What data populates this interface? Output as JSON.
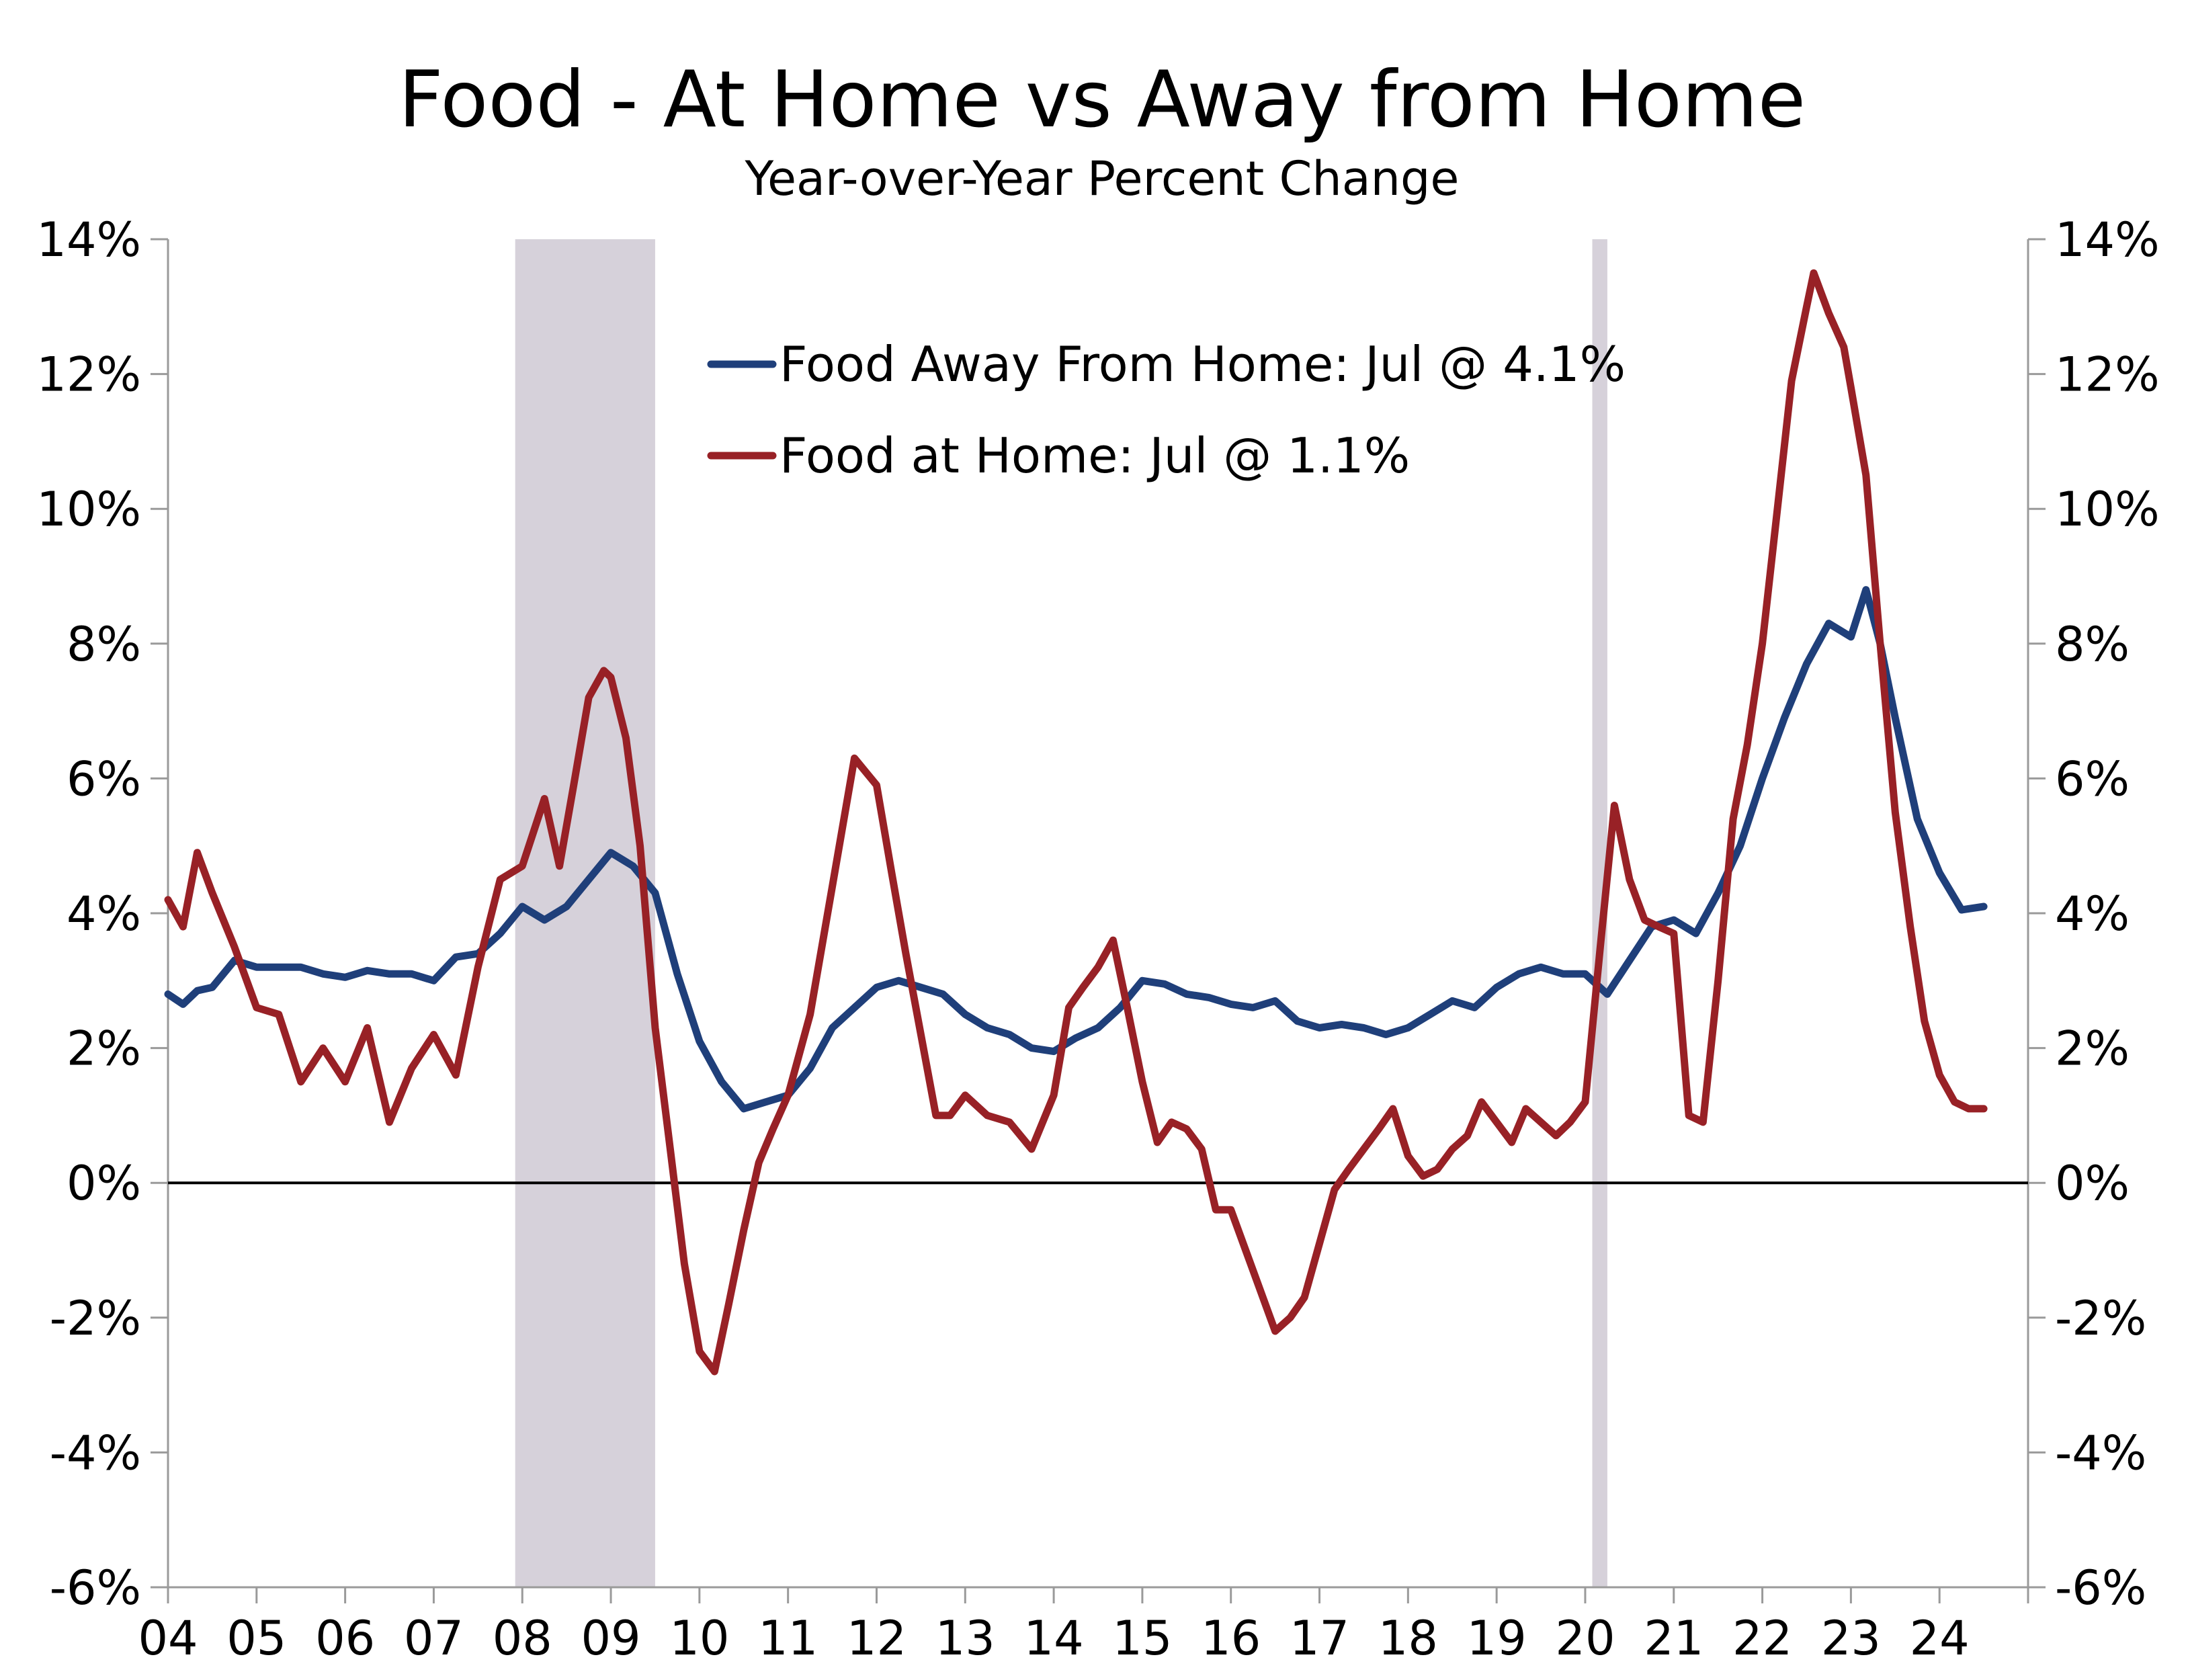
{
  "chart_data": {
    "type": "line",
    "title": "Food - At Home vs Away from Home",
    "subtitle": "Year-over-Year Percent Change",
    "xlabel": "",
    "ylabel": "",
    "x_range": [
      2004.0,
      2025.0
    ],
    "ylim": [
      -6,
      14
    ],
    "y_ticks": [
      -6,
      -4,
      -2,
      0,
      2,
      4,
      6,
      8,
      10,
      12,
      14
    ],
    "y_tick_labels": [
      "-6%",
      "-4%",
      "-2%",
      "0%",
      "2%",
      "4%",
      "6%",
      "8%",
      "10%",
      "12%",
      "14%"
    ],
    "x_tick_labels": [
      "04",
      "05",
      "06",
      "07",
      "08",
      "09",
      "10",
      "11",
      "12",
      "13",
      "14",
      "15",
      "16",
      "17",
      "18",
      "19",
      "20",
      "21",
      "22",
      "23",
      "24"
    ],
    "grid": false,
    "zero_line": true,
    "dual_axis": true,
    "legend_position": "top-center",
    "recession_bands": [
      {
        "start": 2007.92,
        "end": 2009.5
      },
      {
        "start": 2020.08,
        "end": 2020.25
      }
    ],
    "colors": {
      "away_from_home": "#1f3f7a",
      "at_home": "#982126",
      "recession": "#d6d1da",
      "axis": "#9a9a9a",
      "zero_line": "#000000"
    },
    "series": [
      {
        "name": "Food Away From Home: Jul @ 4.1%",
        "color": "#1f3f7a",
        "points": [
          [
            2004.0,
            2.8
          ],
          [
            2004.17,
            2.65
          ],
          [
            2004.33,
            2.85
          ],
          [
            2004.5,
            2.9
          ],
          [
            2004.75,
            3.3
          ],
          [
            2005.0,
            3.2
          ],
          [
            2005.25,
            3.2
          ],
          [
            2005.5,
            3.2
          ],
          [
            2005.75,
            3.1
          ],
          [
            2006.0,
            3.05
          ],
          [
            2006.25,
            3.15
          ],
          [
            2006.5,
            3.1
          ],
          [
            2006.75,
            3.1
          ],
          [
            2007.0,
            3.0
          ],
          [
            2007.25,
            3.35
          ],
          [
            2007.5,
            3.4
          ],
          [
            2007.75,
            3.7
          ],
          [
            2008.0,
            4.1
          ],
          [
            2008.25,
            3.9
          ],
          [
            2008.5,
            4.1
          ],
          [
            2008.75,
            4.5
          ],
          [
            2009.0,
            4.9
          ],
          [
            2009.25,
            4.7
          ],
          [
            2009.5,
            4.3
          ],
          [
            2009.75,
            3.1
          ],
          [
            2010.0,
            2.1
          ],
          [
            2010.25,
            1.5
          ],
          [
            2010.5,
            1.1
          ],
          [
            2010.75,
            1.2
          ],
          [
            2011.0,
            1.3
          ],
          [
            2011.25,
            1.7
          ],
          [
            2011.5,
            2.3
          ],
          [
            2011.75,
            2.6
          ],
          [
            2012.0,
            2.9
          ],
          [
            2012.25,
            3.0
          ],
          [
            2012.5,
            2.9
          ],
          [
            2012.75,
            2.8
          ],
          [
            2013.0,
            2.5
          ],
          [
            2013.25,
            2.3
          ],
          [
            2013.5,
            2.2
          ],
          [
            2013.75,
            2.0
          ],
          [
            2014.0,
            1.95
          ],
          [
            2014.25,
            2.15
          ],
          [
            2014.5,
            2.3
          ],
          [
            2014.75,
            2.6
          ],
          [
            2015.0,
            3.0
          ],
          [
            2015.25,
            2.95
          ],
          [
            2015.5,
            2.8
          ],
          [
            2015.75,
            2.75
          ],
          [
            2016.0,
            2.65
          ],
          [
            2016.25,
            2.6
          ],
          [
            2016.5,
            2.7
          ],
          [
            2016.75,
            2.4
          ],
          [
            2017.0,
            2.3
          ],
          [
            2017.25,
            2.35
          ],
          [
            2017.5,
            2.3
          ],
          [
            2017.75,
            2.2
          ],
          [
            2018.0,
            2.3
          ],
          [
            2018.25,
            2.5
          ],
          [
            2018.5,
            2.7
          ],
          [
            2018.75,
            2.6
          ],
          [
            2019.0,
            2.9
          ],
          [
            2019.25,
            3.1
          ],
          [
            2019.5,
            3.2
          ],
          [
            2019.75,
            3.1
          ],
          [
            2020.0,
            3.1
          ],
          [
            2020.25,
            2.8
          ],
          [
            2020.5,
            3.3
          ],
          [
            2020.75,
            3.8
          ],
          [
            2021.0,
            3.9
          ],
          [
            2021.25,
            3.7
          ],
          [
            2021.5,
            4.3
          ],
          [
            2021.75,
            5.0
          ],
          [
            2022.0,
            6.0
          ],
          [
            2022.25,
            6.9
          ],
          [
            2022.5,
            7.7
          ],
          [
            2022.75,
            8.3
          ],
          [
            2023.0,
            8.1
          ],
          [
            2023.17,
            8.8
          ],
          [
            2023.33,
            8.0
          ],
          [
            2023.5,
            6.9
          ],
          [
            2023.75,
            5.4
          ],
          [
            2024.0,
            4.6
          ],
          [
            2024.25,
            4.05
          ],
          [
            2024.5,
            4.1
          ]
        ]
      },
      {
        "name": "Food at Home: Jul @ 1.1%",
        "color": "#982126",
        "points": [
          [
            2004.0,
            4.2
          ],
          [
            2004.17,
            3.8
          ],
          [
            2004.33,
            4.9
          ],
          [
            2004.5,
            4.3
          ],
          [
            2004.75,
            3.5
          ],
          [
            2005.0,
            2.6
          ],
          [
            2005.25,
            2.5
          ],
          [
            2005.5,
            1.5
          ],
          [
            2005.75,
            2.0
          ],
          [
            2006.0,
            1.5
          ],
          [
            2006.25,
            2.3
          ],
          [
            2006.5,
            0.9
          ],
          [
            2006.75,
            1.7
          ],
          [
            2007.0,
            2.2
          ],
          [
            2007.25,
            1.6
          ],
          [
            2007.5,
            3.2
          ],
          [
            2007.75,
            4.5
          ],
          [
            2008.0,
            4.7
          ],
          [
            2008.25,
            5.7
          ],
          [
            2008.42,
            4.7
          ],
          [
            2008.58,
            5.9
          ],
          [
            2008.75,
            7.2
          ],
          [
            2008.92,
            7.6
          ],
          [
            2009.0,
            7.5
          ],
          [
            2009.17,
            6.6
          ],
          [
            2009.33,
            5.0
          ],
          [
            2009.5,
            2.3
          ],
          [
            2009.67,
            0.5
          ],
          [
            2009.83,
            -1.2
          ],
          [
            2010.0,
            -2.5
          ],
          [
            2010.17,
            -2.8
          ],
          [
            2010.33,
            -1.8
          ],
          [
            2010.5,
            -0.7
          ],
          [
            2010.67,
            0.3
          ],
          [
            2010.83,
            0.8
          ],
          [
            2011.0,
            1.3
          ],
          [
            2011.25,
            2.5
          ],
          [
            2011.5,
            4.4
          ],
          [
            2011.75,
            6.3
          ],
          [
            2012.0,
            5.9
          ],
          [
            2012.17,
            4.6
          ],
          [
            2012.33,
            3.4
          ],
          [
            2012.5,
            2.2
          ],
          [
            2012.67,
            1.0
          ],
          [
            2012.83,
            1.0
          ],
          [
            2013.0,
            1.3
          ],
          [
            2013.25,
            1.0
          ],
          [
            2013.5,
            0.9
          ],
          [
            2013.75,
            0.5
          ],
          [
            2014.0,
            1.3
          ],
          [
            2014.17,
            2.6
          ],
          [
            2014.33,
            2.9
          ],
          [
            2014.5,
            3.2
          ],
          [
            2014.67,
            3.6
          ],
          [
            2014.83,
            2.6
          ],
          [
            2015.0,
            1.5
          ],
          [
            2015.17,
            0.6
          ],
          [
            2015.33,
            0.9
          ],
          [
            2015.5,
            0.8
          ],
          [
            2015.67,
            0.5
          ],
          [
            2015.83,
            -0.4
          ],
          [
            2016.0,
            -0.4
          ],
          [
            2016.25,
            -1.3
          ],
          [
            2016.5,
            -2.2
          ],
          [
            2016.67,
            -2.0
          ],
          [
            2016.83,
            -1.7
          ],
          [
            2017.0,
            -0.9
          ],
          [
            2017.17,
            -0.1
          ],
          [
            2017.33,
            0.2
          ],
          [
            2017.5,
            0.5
          ],
          [
            2017.67,
            0.8
          ],
          [
            2017.83,
            1.1
          ],
          [
            2018.0,
            0.4
          ],
          [
            2018.17,
            0.1
          ],
          [
            2018.33,
            0.2
          ],
          [
            2018.5,
            0.5
          ],
          [
            2018.67,
            0.7
          ],
          [
            2018.83,
            1.2
          ],
          [
            2019.0,
            0.9
          ],
          [
            2019.17,
            0.6
          ],
          [
            2019.33,
            1.1
          ],
          [
            2019.5,
            0.9
          ],
          [
            2019.67,
            0.7
          ],
          [
            2019.83,
            0.9
          ],
          [
            2020.0,
            1.2
          ],
          [
            2020.17,
            3.5
          ],
          [
            2020.33,
            5.6
          ],
          [
            2020.5,
            4.5
          ],
          [
            2020.67,
            3.9
          ],
          [
            2020.83,
            3.8
          ],
          [
            2021.0,
            3.7
          ],
          [
            2021.17,
            1.0
          ],
          [
            2021.33,
            0.9
          ],
          [
            2021.5,
            3.0
          ],
          [
            2021.67,
            5.4
          ],
          [
            2021.83,
            6.5
          ],
          [
            2022.0,
            8.0
          ],
          [
            2022.17,
            10.0
          ],
          [
            2022.33,
            11.9
          ],
          [
            2022.5,
            13.0
          ],
          [
            2022.58,
            13.5
          ],
          [
            2022.75,
            12.9
          ],
          [
            2022.92,
            12.4
          ],
          [
            2023.0,
            11.8
          ],
          [
            2023.17,
            10.5
          ],
          [
            2023.33,
            8.0
          ],
          [
            2023.5,
            5.5
          ],
          [
            2023.67,
            3.8
          ],
          [
            2023.83,
            2.4
          ],
          [
            2024.0,
            1.6
          ],
          [
            2024.17,
            1.2
          ],
          [
            2024.33,
            1.1
          ],
          [
            2024.5,
            1.1
          ]
        ]
      }
    ]
  }
}
